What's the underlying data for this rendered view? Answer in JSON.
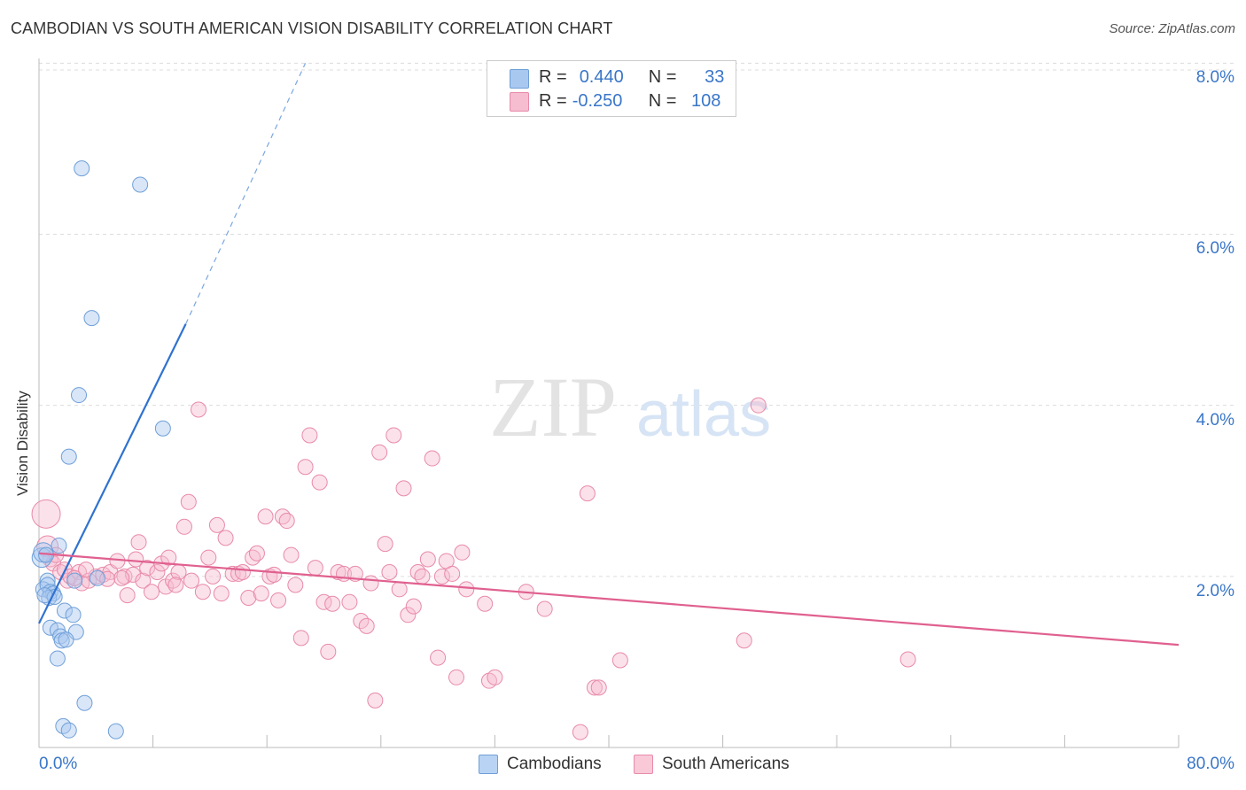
{
  "title": "CAMBODIAN VS SOUTH AMERICAN VISION DISABILITY CORRELATION CHART",
  "source": "Source: ZipAtlas.com",
  "watermark": {
    "zip": "ZIP",
    "atlas": "atlas"
  },
  "legend": {
    "r_label": "R =",
    "n_label": "N =",
    "rows": [
      {
        "r": "0.440",
        "n": "33",
        "color": "#a9c8f0",
        "border": "#6f9fd8"
      },
      {
        "r": "-0.250",
        "n": "108",
        "color": "#f6bdd0",
        "border": "#e88aa9"
      }
    ]
  },
  "bottom_legend": [
    {
      "label": "Cambodians",
      "color": "#b8d3f4",
      "border": "#6f9fd8"
    },
    {
      "label": "South Americans",
      "color": "#f9c9d8",
      "border": "#e88aa9"
    }
  ],
  "chart_data": {
    "type": "scatter",
    "xlabel": "",
    "ylabel": "Vision Disability",
    "xlim": [
      0,
      80
    ],
    "ylim": [
      0,
      8.2
    ],
    "y_ticks": [
      {
        "v": 2,
        "label": "2.0%"
      },
      {
        "v": 4,
        "label": "4.0%"
      },
      {
        "v": 6,
        "label": "6.0%"
      },
      {
        "v": 8,
        "label": "8.0%"
      }
    ],
    "x_tick_labels": [
      {
        "v": 0,
        "label": "0.0%"
      },
      {
        "v": 80,
        "label": "80.0%"
      }
    ],
    "x_minor_ticks": [
      8,
      16,
      24,
      32,
      40,
      48,
      56,
      64,
      72,
      80
    ],
    "grid": "horizontal dashed",
    "series": [
      {
        "name": "Cambodians",
        "color": "#a9c8f0",
        "stroke": "#6f9fd8",
        "trend": {
          "x0": 0,
          "y0": 1.45,
          "x1": 10.3,
          "y1": 4.95,
          "dash_to_x": 18.7,
          "dash_to_y": 8.0,
          "color": "#2f72d0"
        },
        "points": [
          [
            3.0,
            6.77
          ],
          [
            7.1,
            6.58
          ],
          [
            3.7,
            5.02
          ],
          [
            2.8,
            4.12
          ],
          [
            8.7,
            3.73
          ],
          [
            2.1,
            3.4
          ],
          [
            0.2,
            2.22
          ],
          [
            0.3,
            2.28
          ],
          [
            0.5,
            2.25
          ],
          [
            1.4,
            2.36
          ],
          [
            0.6,
            1.95
          ],
          [
            0.3,
            1.85
          ],
          [
            0.6,
            1.9
          ],
          [
            0.8,
            1.82
          ],
          [
            1.0,
            1.8
          ],
          [
            0.7,
            1.75
          ],
          [
            1.1,
            1.76
          ],
          [
            0.4,
            1.78
          ],
          [
            1.8,
            1.6
          ],
          [
            2.4,
            1.55
          ],
          [
            0.8,
            1.4
          ],
          [
            1.3,
            1.37
          ],
          [
            2.6,
            1.35
          ],
          [
            1.5,
            1.3
          ],
          [
            1.6,
            1.25
          ],
          [
            1.9,
            1.26
          ],
          [
            1.3,
            1.04
          ],
          [
            3.2,
            0.52
          ],
          [
            1.7,
            0.25
          ],
          [
            2.1,
            0.2
          ],
          [
            5.4,
            0.19
          ],
          [
            4.1,
            1.98
          ],
          [
            2.5,
            1.95
          ]
        ]
      },
      {
        "name": "South Americans",
        "color": "#f6bdd0",
        "stroke": "#e88aa9",
        "trend": {
          "x0": 0,
          "y0": 2.27,
          "x1": 80,
          "y1": 1.2,
          "color": "#e0608f"
        },
        "points": [
          [
            0.5,
            2.73
          ],
          [
            0.6,
            2.35
          ],
          [
            0.8,
            2.2
          ],
          [
            1.0,
            2.15
          ],
          [
            1.5,
            2.05
          ],
          [
            1.8,
            2.08
          ],
          [
            2.0,
            1.95
          ],
          [
            2.2,
            2.0
          ],
          [
            2.8,
            2.05
          ],
          [
            3.0,
            1.92
          ],
          [
            3.5,
            1.95
          ],
          [
            4.0,
            2.0
          ],
          [
            4.5,
            2.02
          ],
          [
            5.0,
            2.05
          ],
          [
            5.5,
            2.18
          ],
          [
            6.0,
            2.0
          ],
          [
            6.2,
            1.78
          ],
          [
            6.6,
            2.02
          ],
          [
            6.8,
            2.2
          ],
          [
            7.0,
            2.4
          ],
          [
            7.3,
            1.95
          ],
          [
            7.6,
            2.1
          ],
          [
            7.9,
            1.82
          ],
          [
            8.3,
            2.05
          ],
          [
            8.6,
            2.15
          ],
          [
            8.9,
            1.88
          ],
          [
            9.1,
            2.22
          ],
          [
            9.4,
            1.95
          ],
          [
            9.8,
            2.05
          ],
          [
            10.2,
            2.58
          ],
          [
            10.5,
            2.87
          ],
          [
            10.7,
            1.95
          ],
          [
            11.2,
            3.95
          ],
          [
            11.5,
            1.82
          ],
          [
            11.9,
            2.22
          ],
          [
            12.2,
            2.0
          ],
          [
            12.5,
            2.6
          ],
          [
            12.8,
            1.8
          ],
          [
            13.1,
            2.45
          ],
          [
            13.6,
            2.03
          ],
          [
            14.0,
            2.03
          ],
          [
            14.3,
            2.05
          ],
          [
            14.7,
            1.75
          ],
          [
            15.0,
            2.22
          ],
          [
            15.3,
            2.27
          ],
          [
            15.6,
            1.8
          ],
          [
            15.9,
            2.7
          ],
          [
            16.2,
            2.0
          ],
          [
            16.5,
            2.02
          ],
          [
            16.8,
            1.72
          ],
          [
            17.1,
            2.7
          ],
          [
            17.4,
            2.65
          ],
          [
            17.7,
            2.25
          ],
          [
            18.0,
            1.9
          ],
          [
            18.4,
            1.28
          ],
          [
            18.7,
            3.28
          ],
          [
            19.0,
            3.65
          ],
          [
            19.4,
            2.1
          ],
          [
            19.7,
            3.1
          ],
          [
            20.0,
            1.7
          ],
          [
            20.3,
            1.12
          ],
          [
            20.6,
            1.68
          ],
          [
            21.0,
            2.05
          ],
          [
            21.4,
            2.03
          ],
          [
            21.8,
            1.7
          ],
          [
            22.2,
            2.03
          ],
          [
            22.6,
            1.48
          ],
          [
            23.0,
            1.42
          ],
          [
            23.3,
            1.92
          ],
          [
            23.6,
            0.55
          ],
          [
            23.9,
            3.45
          ],
          [
            24.3,
            2.38
          ],
          [
            24.6,
            2.05
          ],
          [
            24.9,
            3.65
          ],
          [
            25.3,
            1.85
          ],
          [
            25.6,
            3.03
          ],
          [
            25.9,
            1.55
          ],
          [
            26.3,
            1.65
          ],
          [
            26.6,
            2.05
          ],
          [
            26.9,
            2.0
          ],
          [
            27.3,
            2.2
          ],
          [
            27.6,
            3.38
          ],
          [
            28.0,
            1.05
          ],
          [
            28.3,
            2.0
          ],
          [
            28.6,
            2.18
          ],
          [
            29.0,
            2.03
          ],
          [
            29.3,
            0.82
          ],
          [
            29.7,
            2.28
          ],
          [
            30.0,
            1.85
          ],
          [
            31.3,
            1.68
          ],
          [
            31.6,
            0.78
          ],
          [
            32.0,
            0.82
          ],
          [
            34.2,
            1.82
          ],
          [
            35.5,
            1.62
          ],
          [
            38.0,
            0.18
          ],
          [
            38.5,
            2.97
          ],
          [
            39.0,
            0.7
          ],
          [
            39.3,
            0.7
          ],
          [
            40.8,
            1.02
          ],
          [
            49.5,
            1.25
          ],
          [
            50.5,
            4.0
          ],
          [
            61.0,
            1.03
          ],
          [
            1.2,
            2.25
          ],
          [
            2.5,
            1.98
          ],
          [
            3.3,
            2.08
          ],
          [
            4.8,
            1.97
          ],
          [
            5.8,
            1.98
          ],
          [
            9.6,
            1.9
          ]
        ]
      }
    ]
  }
}
